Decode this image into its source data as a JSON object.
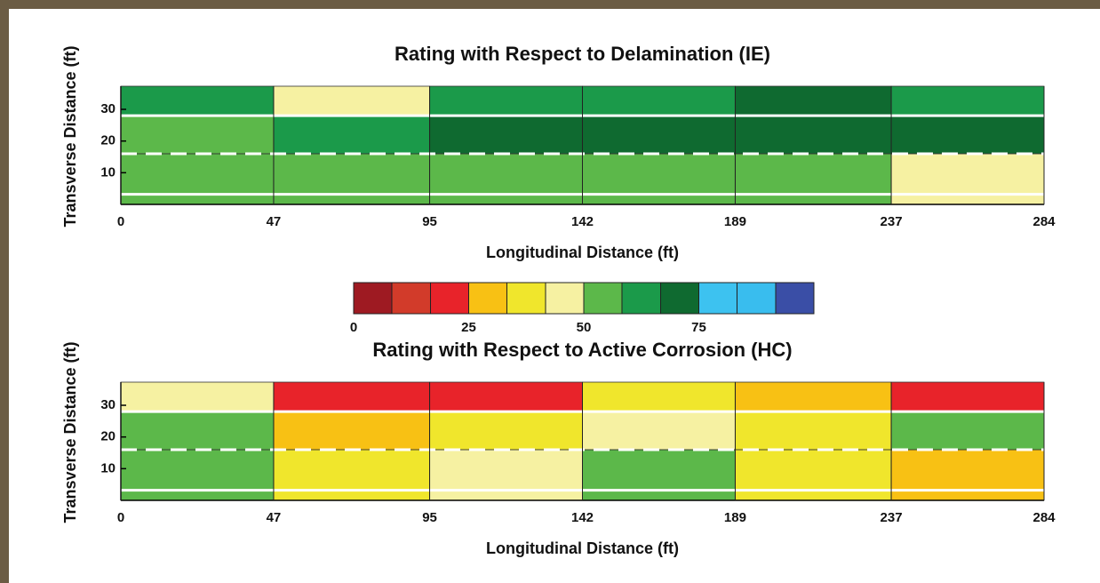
{
  "chart_data": [
    {
      "type": "heatmap",
      "title": "Rating with Respect to Delamination (IE)",
      "xlabel": "Longitudinal Distance (ft)",
      "ylabel": "Transverse Distance (ft)",
      "x": [
        0,
        47,
        95,
        142,
        189,
        237,
        284
      ],
      "y": [
        0,
        16,
        28,
        37.3
      ],
      "values": [
        [
          54,
          54,
          54,
          54,
          54,
          46
        ],
        [
          54,
          62,
          70,
          70,
          70,
          70
        ],
        [
          62,
          46,
          62,
          62,
          70,
          62
        ]
      ],
      "xlim": [
        0,
        284
      ],
      "ylim": [
        0,
        37.3
      ],
      "xticks": [
        0,
        47,
        95,
        142,
        189,
        237,
        284
      ],
      "yticks": [
        10,
        20,
        30
      ],
      "lines": [
        {
          "y": 28,
          "style": "solid"
        },
        {
          "y": 16,
          "style": "dashed"
        },
        {
          "y": 3.2,
          "style": "solid"
        }
      ]
    },
    {
      "type": "heatmap",
      "title": "Rating with Respect to Active Corrosion (HC)",
      "xlabel": "Longitudinal Distance (ft)",
      "ylabel": "Transverse Distance (ft)",
      "x": [
        0,
        47,
        95,
        142,
        189,
        237,
        284
      ],
      "y": [
        0,
        16,
        28,
        37.3
      ],
      "values": [
        [
          54,
          38,
          46,
          54,
          38,
          29
        ],
        [
          54,
          29,
          38,
          46,
          38,
          54
        ],
        [
          46,
          21,
          21,
          38,
          29,
          21
        ]
      ],
      "xlim": [
        0,
        284
      ],
      "ylim": [
        0,
        37.3
      ],
      "xticks": [
        0,
        47,
        95,
        142,
        189,
        237,
        284
      ],
      "yticks": [
        10,
        20,
        30
      ],
      "lines": [
        {
          "y": 28,
          "style": "solid"
        },
        {
          "y": 16,
          "style": "dashed"
        },
        {
          "y": 3.2,
          "style": "solid"
        }
      ]
    }
  ],
  "colorbar": {
    "bins": [
      0,
      8.3,
      16.7,
      25,
      33.3,
      41.7,
      50,
      58.3,
      66.7,
      75,
      83.3,
      91.7,
      100
    ],
    "colors": [
      "#9e1a22",
      "#d23b2a",
      "#e8232a",
      "#f8c114",
      "#f0e62c",
      "#f6f1a2",
      "#5cb84a",
      "#1b9a4a",
      "#0f6a30",
      "#3dc2f0",
      "#39bdee",
      "#3a4ea6"
    ],
    "ticks": [
      0,
      25,
      50,
      75
    ]
  }
}
